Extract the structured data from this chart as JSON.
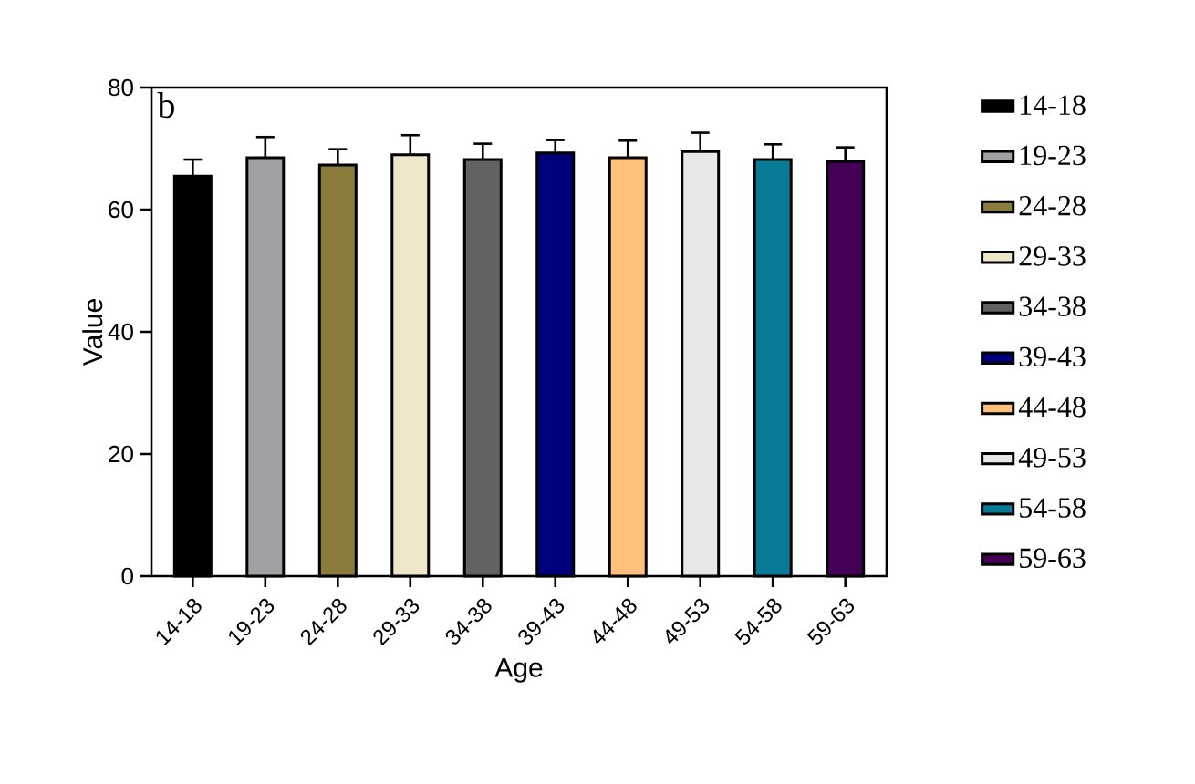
{
  "chart_data": {
    "type": "bar",
    "xlabel": "Age",
    "ylabel": "Value",
    "annotations": [
      "b"
    ],
    "categories": [
      "14-18",
      "19-23",
      "24-28",
      "29-33",
      "34-38",
      "39-43",
      "44-48",
      "49-53",
      "54-58",
      "59-63"
    ],
    "series": [
      {
        "name": "14-18",
        "color": "#000000",
        "values": [
          65.5,
          null,
          null,
          null,
          null,
          null,
          null,
          null,
          null,
          null
        ],
        "errors": [
          2.7,
          null,
          null,
          null,
          null,
          null,
          null,
          null,
          null,
          null
        ]
      },
      {
        "name": "19-23",
        "color": "#a0a0a4",
        "values": [
          null,
          68.5,
          null,
          null,
          null,
          null,
          null,
          null,
          null,
          null
        ],
        "errors": [
          null,
          3.4,
          null,
          null,
          null,
          null,
          null,
          null,
          null,
          null
        ]
      },
      {
        "name": "24-28",
        "color": "#8b7b3c",
        "values": [
          null,
          null,
          67.3,
          null,
          null,
          null,
          null,
          null,
          null,
          null
        ],
        "errors": [
          null,
          null,
          2.6,
          null,
          null,
          null,
          null,
          null,
          null,
          null
        ]
      },
      {
        "name": "29-33",
        "color": "#ede6c8",
        "values": [
          null,
          null,
          null,
          69.0,
          null,
          null,
          null,
          null,
          null,
          null
        ],
        "errors": [
          null,
          null,
          null,
          3.2,
          null,
          null,
          null,
          null,
          null,
          null
        ]
      },
      {
        "name": "34-38",
        "color": "#626262",
        "values": [
          null,
          null,
          null,
          null,
          68.2,
          null,
          null,
          null,
          null,
          null
        ],
        "errors": [
          null,
          null,
          null,
          null,
          2.6,
          null,
          null,
          null,
          null,
          null
        ]
      },
      {
        "name": "39-43",
        "color": "#00007a",
        "values": [
          null,
          null,
          null,
          null,
          null,
          69.3,
          null,
          null,
          null,
          null
        ],
        "errors": [
          null,
          null,
          null,
          null,
          null,
          2.1,
          null,
          null,
          null,
          null
        ]
      },
      {
        "name": "44-48",
        "color": "#ffc07e",
        "values": [
          null,
          null,
          null,
          null,
          null,
          null,
          68.5,
          null,
          null,
          null
        ],
        "errors": [
          null,
          null,
          null,
          null,
          null,
          null,
          2.8,
          null,
          null,
          null
        ]
      },
      {
        "name": "49-53",
        "color": "#e8e8e8",
        "values": [
          null,
          null,
          null,
          null,
          null,
          null,
          null,
          69.5,
          null,
          null
        ],
        "errors": [
          null,
          null,
          null,
          null,
          null,
          null,
          null,
          3.1,
          null,
          null
        ]
      },
      {
        "name": "54-58",
        "color": "#087c96",
        "values": [
          null,
          null,
          null,
          null,
          null,
          null,
          null,
          null,
          68.2,
          null
        ],
        "errors": [
          null,
          null,
          null,
          null,
          null,
          null,
          null,
          null,
          2.5,
          null
        ]
      },
      {
        "name": "59-63",
        "color": "#440055",
        "values": [
          null,
          null,
          null,
          null,
          null,
          null,
          null,
          null,
          null,
          67.9
        ],
        "errors": [
          null,
          null,
          null,
          null,
          null,
          null,
          null,
          null,
          null,
          2.3
        ]
      }
    ],
    "ylim": [
      0,
      80
    ],
    "yticks": [
      0,
      20,
      40,
      60,
      80
    ],
    "legend": "right"
  }
}
